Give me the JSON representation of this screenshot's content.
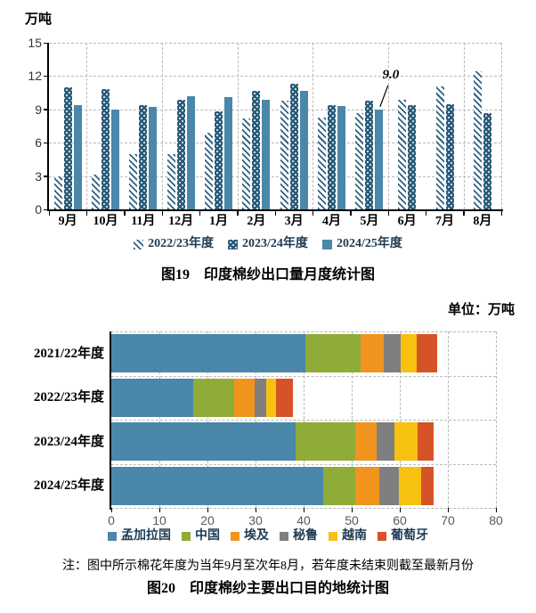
{
  "colors": {
    "series_2024_25": "#4a87a9",
    "series_2023_24": "#2b5d7a",
    "grid": "#b9b9b9",
    "axis": "#000000",
    "tick_text": "#595959",
    "legend_text": "#1f3b52"
  },
  "chart_data": [
    {
      "type": "bar",
      "title": "图19　印度棉纱出口量月度统计图",
      "ylabel": "万吨",
      "categories": [
        "9月",
        "10月",
        "11月",
        "12月",
        "1月",
        "2月",
        "3月",
        "4月",
        "5月",
        "6月",
        "7月",
        "8月"
      ],
      "series": [
        {
          "name": "2022/23年度",
          "style": "hatched",
          "color": "#2f617e",
          "values": [
            3.0,
            3.1,
            5.0,
            5.0,
            6.9,
            8.2,
            9.8,
            8.3,
            8.7,
            9.9,
            11.1,
            12.4
          ]
        },
        {
          "name": "2023/24年度",
          "style": "dotted",
          "color": "#2b5d7a",
          "values": [
            11.0,
            10.8,
            9.4,
            9.9,
            8.8,
            10.7,
            11.3,
            9.4,
            9.8,
            9.4,
            9.5,
            8.7
          ]
        },
        {
          "name": "2024/25年度",
          "style": "solid",
          "color": "#4a87a9",
          "values": [
            9.4,
            9.0,
            9.2,
            10.2,
            10.1,
            9.9,
            10.7,
            9.3,
            9.0,
            null,
            null,
            null
          ]
        }
      ],
      "ylim": [
        0,
        15
      ],
      "yticks": [
        0,
        3,
        6,
        9,
        12,
        15
      ],
      "annotation": {
        "text": "9.0",
        "series_index": 2,
        "category_index": 8
      },
      "legend_position": "bottom",
      "grid": true
    },
    {
      "type": "bar-horizontal-stacked",
      "title": "图20　印度棉纱主要出口目的地统计图",
      "unit_label": "单位：万吨",
      "note": "注：图中所示棉花年度为当年9月至次年8月，若年度未结束则截至最新月份",
      "categories": [
        "2021/22年度",
        "2022/23年度",
        "2023/24年度",
        "2024/25年度"
      ],
      "series": [
        {
          "name": "孟加拉国",
          "color": "#4a87a9",
          "values": [
            40.4,
            17.0,
            38.3,
            44.1
          ]
        },
        {
          "name": "中国",
          "color": "#8fac38",
          "values": [
            11.5,
            8.6,
            12.4,
            6.6
          ]
        },
        {
          "name": "埃及",
          "color": "#f0941d",
          "values": [
            4.8,
            4.2,
            4.4,
            5.0
          ]
        },
        {
          "name": "秘鲁",
          "color": "#7f7f7f",
          "values": [
            3.5,
            2.4,
            3.7,
            4.1
          ]
        },
        {
          "name": "越南",
          "color": "#f6c111",
          "values": [
            3.3,
            2.1,
            4.9,
            4.6
          ]
        },
        {
          "name": "葡萄牙",
          "color": "#d65327",
          "values": [
            4.3,
            3.4,
            3.3,
            2.6
          ]
        }
      ],
      "xlim": [
        0,
        80
      ],
      "xticks": [
        0,
        10,
        20,
        30,
        40,
        50,
        60,
        70,
        80
      ],
      "legend_position": "bottom",
      "grid": true
    }
  ]
}
